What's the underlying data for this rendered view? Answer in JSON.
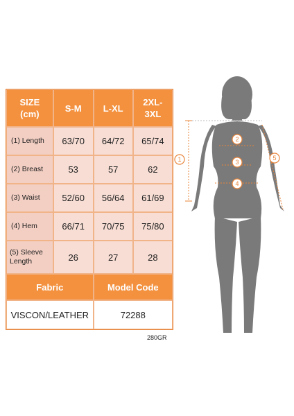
{
  "table": {
    "header": [
      "SIZE\n(cm)",
      "S-M",
      "L-XL",
      "2XL-\n3XL"
    ],
    "rows": [
      {
        "label": "(1) Length",
        "values": [
          "63/70",
          "64/72",
          "65/74"
        ]
      },
      {
        "label": "(2) Breast",
        "values": [
          "53",
          "57",
          "62"
        ]
      },
      {
        "label": "(3) Waist",
        "values": [
          "52/60",
          "56/64",
          "61/69"
        ]
      },
      {
        "label": "(4) Hem",
        "values": [
          "66/71",
          "70/75",
          "75/80"
        ]
      },
      {
        "label": "(5) Sleeve\nLength",
        "values": [
          "26",
          "27",
          "28"
        ]
      }
    ],
    "info_header": {
      "fabric": "Fabric",
      "model_code": "Model Code"
    },
    "info_values": {
      "fabric": "VISCON/LEATHER",
      "model_code": "72288"
    }
  },
  "weight": "280GR",
  "figure_markers": [
    "1",
    "2",
    "3",
    "4",
    "5"
  ],
  "colors": {
    "accent": "#f3913f",
    "cell": "#f7ddd4",
    "silhouette": "#7a7a7a"
  }
}
